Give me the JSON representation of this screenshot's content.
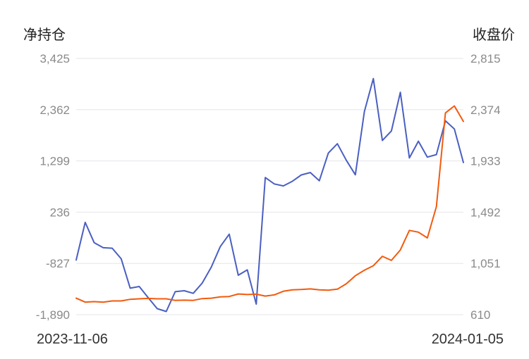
{
  "chart_data": {
    "type": "line",
    "y_left_label": "净持仓",
    "y_right_label": "收盘价",
    "x_labels": [
      "2023-11-06",
      "2024-01-05"
    ],
    "y_left_ticks": [
      "3,425",
      "2,362",
      "1,299",
      "236",
      "-827",
      "-1,890"
    ],
    "y_right_ticks": [
      "2,815",
      "2,374",
      "1,933",
      "1,492",
      "1,051",
      "610"
    ],
    "y_left_range": [
      -1890,
      3425
    ],
    "y_right_range": [
      610,
      2815
    ],
    "grid": true,
    "colors": {
      "net_position": "#4a5fc1",
      "close_price": "#f25a0e"
    },
    "series": [
      {
        "key": "net_position",
        "axis": "left",
        "values": [
          -757,
          25,
          -396,
          -502,
          -512,
          -730,
          -1341,
          -1306,
          -1538,
          -1766,
          -1825,
          -1414,
          -1394,
          -1448,
          -1234,
          -906,
          -478,
          -221,
          -1073,
          -962,
          -1671,
          955,
          821,
          781,
          875,
          1008,
          1058,
          887,
          1462,
          1655,
          1312,
          1011,
          2322,
          3008,
          1723,
          1919,
          2723,
          1360,
          1708,
          1378,
          1431,
          2132,
          1962,
          1265
        ]
      },
      {
        "key": "close_price",
        "axis": "right",
        "values": [
          752,
          718,
          722,
          718,
          728,
          728,
          742,
          746,
          750,
          746,
          746,
          733,
          735,
          733,
          748,
          752,
          763,
          766,
          788,
          783,
          786,
          770,
          780,
          811,
          823,
          827,
          832,
          823,
          820,
          829,
          876,
          945,
          992,
          1031,
          1112,
          1077,
          1167,
          1335,
          1320,
          1270,
          1539,
          2346,
          2406,
          2273
        ]
      }
    ]
  }
}
